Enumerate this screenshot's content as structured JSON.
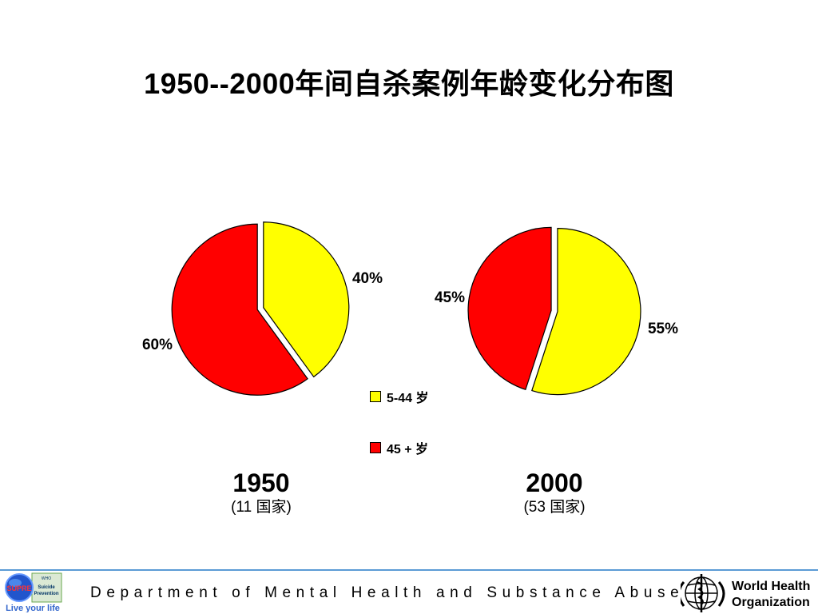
{
  "title": "1950--2000年间自杀案例年龄变化分布图",
  "chart_data": [
    {
      "type": "pie",
      "title": "1950",
      "subtitle": "(11 国家)",
      "categories": [
        "5-44 岁",
        "45 + 岁"
      ],
      "values": [
        40,
        60
      ],
      "labels": [
        "40%",
        "60%"
      ],
      "colors": [
        "#ffff00",
        "#ff0000"
      ]
    },
    {
      "type": "pie",
      "title": "2000",
      "subtitle": "(53 国家)",
      "categories": [
        "5-44 岁",
        "45 + 岁"
      ],
      "values": [
        55,
        45
      ],
      "labels": [
        "55%",
        "45%"
      ],
      "colors": [
        "#ffff00",
        "#ff0000"
      ]
    }
  ],
  "legend": [
    {
      "label": "5-44 岁",
      "color": "#ffff00"
    },
    {
      "label": "45 + 岁",
      "color": "#ff0000"
    }
  ],
  "footer": {
    "department": "Department of Mental Health and Substance Abuse",
    "supre_logo_text": [
      "WHO",
      "Suicide",
      "Prevention",
      "SUPRE",
      "Live your life"
    ],
    "who_logo_text": [
      "World Health",
      "Organization"
    ]
  }
}
